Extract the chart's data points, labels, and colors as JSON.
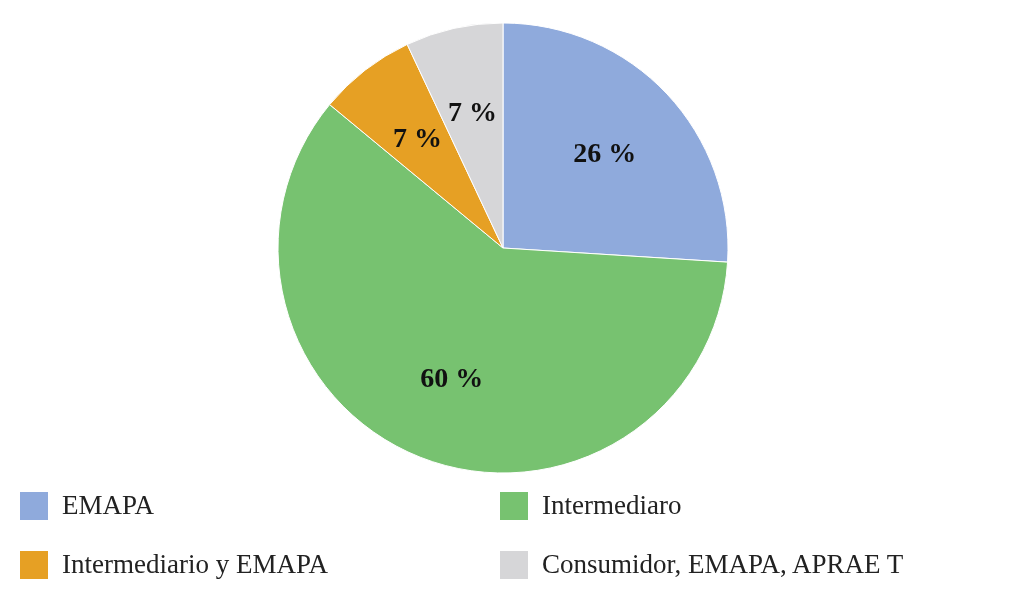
{
  "chart_data": {
    "type": "pie",
    "categories": [
      "EMAPA",
      "Intermediaro",
      "Intermediario y EMAPA",
      "Consumidor, EMAPA, APRAE T"
    ],
    "values": [
      26,
      60,
      7,
      7
    ],
    "value_labels": [
      "26 %",
      "60 %",
      "7 %",
      "7 %"
    ],
    "colors": [
      "#8faadc",
      "#77c270",
      "#e6a024",
      "#d6d6d8"
    ],
    "legend": "bottom"
  }
}
